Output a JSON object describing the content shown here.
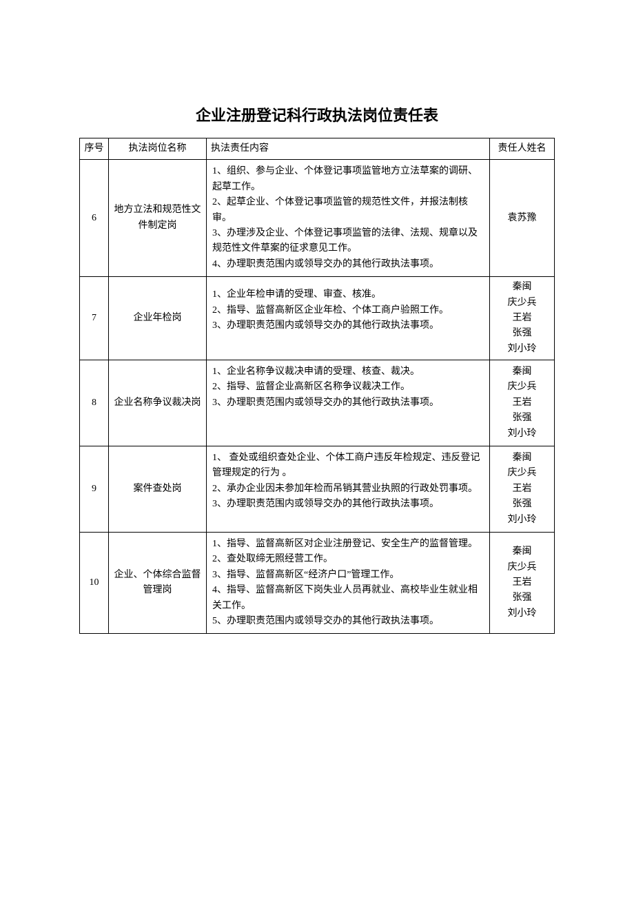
{
  "title": "企业注册登记科行政执法岗位责任表",
  "columns": {
    "idx": "序号",
    "position": "执法岗位名称",
    "content": "执法责任内容",
    "person": "责任人姓名"
  },
  "rows": [
    {
      "idx": "6",
      "position": "地方立法和规范性文件制定岗",
      "content": "1、组织、参与企业、个体登记事项监管地方立法草案的调研、起草工作。\n2、起草企业、个体登记事项监管的规范性文件，并报法制核审。\n3、办理涉及企业、个体登记事项监管的法律、法规、规章以及规范性文件草案的征求意见工作。\n4、办理职责范围内或领导交办的其他行政执法事项。",
      "persons": [
        "袁苏豫"
      ]
    },
    {
      "idx": "7",
      "position": "企业年检岗",
      "content": "1、企业年检申请的受理、审查、核准。\n2、指导、监督高新区企业年检、个体工商户验照工作。\n3、办理职责范围内或领导交办的其他行政执法事项。\n ",
      "persons": [
        "秦闽",
        "庆少兵",
        "王岩",
        "张强",
        "刘小玲"
      ]
    },
    {
      "idx": "8",
      "position": "企业名称争议裁决岗",
      "content": "1、企业名称争议裁决申请的受理、核查、裁决。\n2、指导、监督企业高新区名称争议裁决工作。\n3、办理职责范围内或领导交办的其他行政执法事项。\n \n ",
      "persons": [
        "秦闽",
        "庆少兵",
        "王岩",
        "张强",
        "刘小玲"
      ]
    },
    {
      "idx": "9",
      "position": "案件查处岗",
      "content": "1、 查处或组织查处企业、个体工商户违反年检规定、违反登记管理规定的行为 。\n2、承办企业因未参加年检而吊销其营业执照的行政处罚事项。\n3、办理职责范围内或领导交办的其他行政执法事项。\n ",
      "persons": [
        "秦闽",
        "庆少兵",
        "王岩",
        "张强",
        "刘小玲"
      ]
    },
    {
      "idx": "10",
      "position": "企业、个体综合监督管理岗",
      "content": "1、指导、监督高新区对企业注册登记、安全生产的监督管理。\n2、查处取缔无照经营工作。\n3、指导、监督高新区“经济户口”管理工作。\n4、指导、监督高新区下岗失业人员再就业、高校毕业生就业相关工作。\n5、办理职责范围内或领导交办的其他行政执法事项。",
      "persons": [
        "秦闽",
        "庆少兵",
        "王岩",
        "张强",
        "刘小玲"
      ]
    }
  ]
}
